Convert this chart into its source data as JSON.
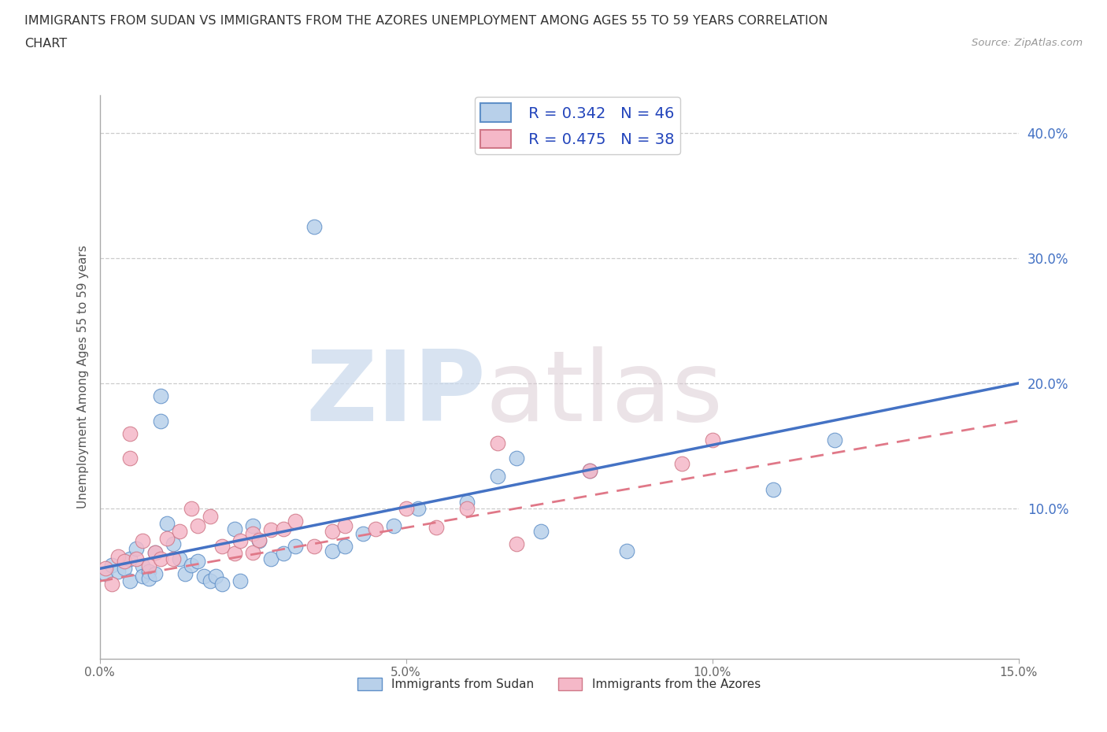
{
  "title_line1": "IMMIGRANTS FROM SUDAN VS IMMIGRANTS FROM THE AZORES UNEMPLOYMENT AMONG AGES 55 TO 59 YEARS CORRELATION",
  "title_line2": "CHART",
  "source": "Source: ZipAtlas.com",
  "ylabel": "Unemployment Among Ages 55 to 59 years",
  "xlim": [
    0.0,
    0.15
  ],
  "ylim": [
    -0.02,
    0.43
  ],
  "xticks": [
    0.0,
    0.05,
    0.1,
    0.15
  ],
  "xticklabels": [
    "0.0%",
    "5.0%",
    "10.0%",
    "15.0%"
  ],
  "yticks": [
    0.0,
    0.1,
    0.2,
    0.3,
    0.4
  ],
  "yticklabels": [
    "",
    "10.0%",
    "20.0%",
    "30.0%",
    "40.0%"
  ],
  "legend_labels": [
    "Immigrants from Sudan",
    "Immigrants from the Azores"
  ],
  "R_sudan": 0.342,
  "N_sudan": 46,
  "R_azores": 0.475,
  "N_azores": 38,
  "color_sudan_fill": "#b8d0ea",
  "color_sudan_edge": "#6090c8",
  "color_azores_fill": "#f5b8c8",
  "color_azores_edge": "#d07888",
  "color_sudan_line": "#4472c4",
  "color_azores_line": "#e07888",
  "trendline_sudan_x0": 0.0,
  "trendline_sudan_y0": 0.052,
  "trendline_sudan_x1": 0.15,
  "trendline_sudan_y1": 0.2,
  "trendline_azores_x0": 0.0,
  "trendline_azores_y0": 0.042,
  "trendline_azores_x1": 0.15,
  "trendline_azores_y1": 0.17,
  "scatter_sudan_x": [
    0.001,
    0.002,
    0.003,
    0.004,
    0.005,
    0.005,
    0.006,
    0.007,
    0.007,
    0.008,
    0.008,
    0.009,
    0.009,
    0.01,
    0.01,
    0.011,
    0.012,
    0.013,
    0.014,
    0.015,
    0.016,
    0.017,
    0.018,
    0.019,
    0.02,
    0.022,
    0.023,
    0.025,
    0.026,
    0.028,
    0.03,
    0.032,
    0.035,
    0.038,
    0.04,
    0.043,
    0.048,
    0.052,
    0.06,
    0.065,
    0.068,
    0.072,
    0.08,
    0.086,
    0.11,
    0.12
  ],
  "scatter_sudan_y": [
    0.048,
    0.055,
    0.05,
    0.052,
    0.06,
    0.042,
    0.068,
    0.054,
    0.046,
    0.05,
    0.044,
    0.065,
    0.048,
    0.19,
    0.17,
    0.088,
    0.072,
    0.06,
    0.048,
    0.055,
    0.058,
    0.046,
    0.042,
    0.046,
    0.04,
    0.084,
    0.042,
    0.086,
    0.074,
    0.06,
    0.064,
    0.07,
    0.325,
    0.066,
    0.07,
    0.08,
    0.086,
    0.1,
    0.105,
    0.126,
    0.14,
    0.082,
    0.13,
    0.066,
    0.115,
    0.155
  ],
  "scatter_azores_x": [
    0.001,
    0.002,
    0.003,
    0.004,
    0.005,
    0.005,
    0.006,
    0.007,
    0.008,
    0.009,
    0.01,
    0.011,
    0.012,
    0.013,
    0.015,
    0.016,
    0.018,
    0.02,
    0.022,
    0.023,
    0.025,
    0.025,
    0.026,
    0.028,
    0.03,
    0.032,
    0.035,
    0.038,
    0.04,
    0.045,
    0.05,
    0.055,
    0.06,
    0.065,
    0.068,
    0.08,
    0.095,
    0.1
  ],
  "scatter_azores_y": [
    0.052,
    0.04,
    0.062,
    0.058,
    0.16,
    0.14,
    0.06,
    0.074,
    0.054,
    0.065,
    0.06,
    0.076,
    0.06,
    0.082,
    0.1,
    0.086,
    0.094,
    0.07,
    0.064,
    0.074,
    0.08,
    0.065,
    0.075,
    0.083,
    0.084,
    0.09,
    0.07,
    0.082,
    0.086,
    0.084,
    0.1,
    0.085,
    0.1,
    0.152,
    0.072,
    0.13,
    0.136,
    0.155
  ],
  "watermark_zip": "ZIP",
  "watermark_atlas": "atlas",
  "background_color": "#ffffff",
  "grid_color": "#cccccc"
}
